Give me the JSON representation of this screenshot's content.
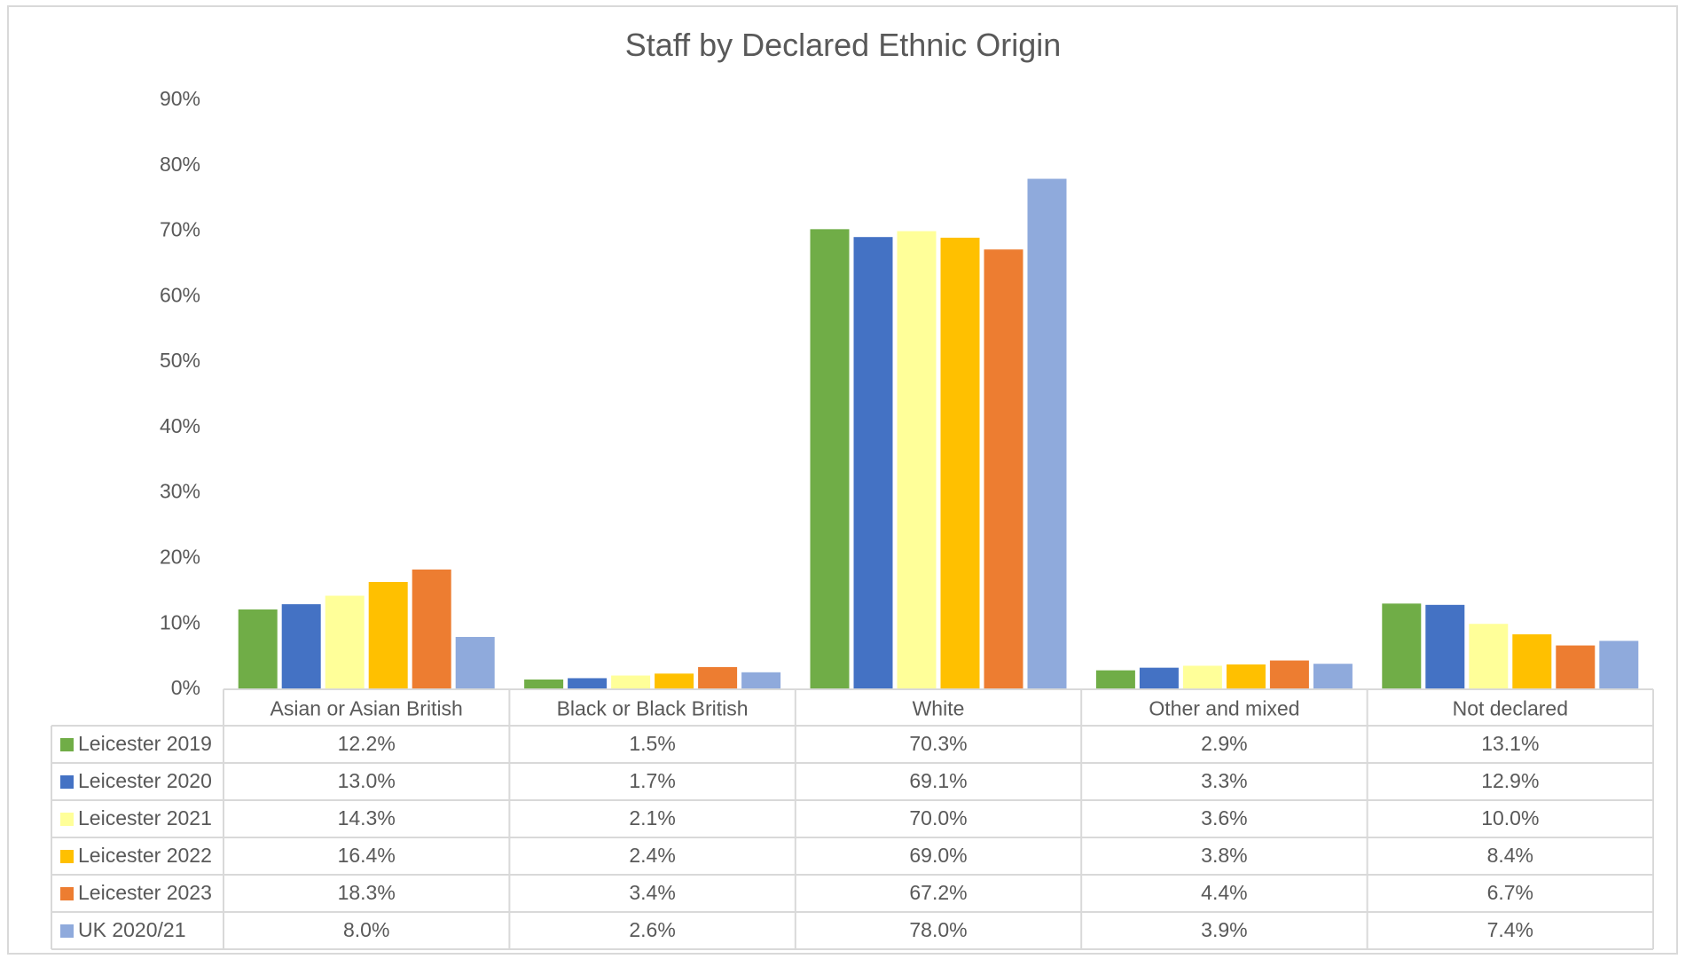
{
  "chart_data": {
    "type": "bar",
    "title": "Staff by Declared Ethnic Origin",
    "xlabel": "",
    "ylabel": "",
    "ylim": [
      0,
      90
    ],
    "y_ticks": [
      "0%",
      "10%",
      "20%",
      "30%",
      "40%",
      "50%",
      "60%",
      "70%",
      "80%",
      "90%"
    ],
    "y_tick_values": [
      0,
      10,
      20,
      30,
      40,
      50,
      60,
      70,
      80,
      90
    ],
    "grid": false,
    "legend": "data-table-left",
    "categories": [
      "Asian or Asian British",
      "Black or Black British",
      "White",
      "Other and mixed",
      "Not declared"
    ],
    "series": [
      {
        "name": "Leicester 2019",
        "color": "#70ad47",
        "values": [
          12.2,
          1.5,
          70.3,
          2.9,
          13.1
        ],
        "labels": [
          "12.2%",
          "1.5%",
          "70.3%",
          "2.9%",
          "13.1%"
        ]
      },
      {
        "name": "Leicester 2020",
        "color": "#4472c4",
        "values": [
          13.0,
          1.7,
          69.1,
          3.3,
          12.9
        ],
        "labels": [
          "13.0%",
          "1.7%",
          "69.1%",
          "3.3%",
          "12.9%"
        ]
      },
      {
        "name": "Leicester 2021",
        "color": "#ffff99",
        "values": [
          14.3,
          2.1,
          70.0,
          3.6,
          10.0
        ],
        "labels": [
          "14.3%",
          "2.1%",
          "70.0%",
          "3.6%",
          "10.0%"
        ]
      },
      {
        "name": "Leicester 2022",
        "color": "#ffc000",
        "values": [
          16.4,
          2.4,
          69.0,
          3.8,
          8.4
        ],
        "labels": [
          "16.4%",
          "2.4%",
          "69.0%",
          "3.8%",
          "8.4%"
        ]
      },
      {
        "name": "Leicester 2023",
        "color": "#ed7d31",
        "values": [
          18.3,
          3.4,
          67.2,
          4.4,
          6.7
        ],
        "labels": [
          "18.3%",
          "3.4%",
          "67.2%",
          "4.4%",
          "6.7%"
        ]
      },
      {
        "name": "UK 2020/21",
        "color": "#8faadc",
        "values": [
          8.0,
          2.6,
          78.0,
          3.9,
          7.4
        ],
        "labels": [
          "8.0%",
          "2.6%",
          "78.0%",
          "3.9%",
          "7.4%"
        ]
      }
    ]
  }
}
